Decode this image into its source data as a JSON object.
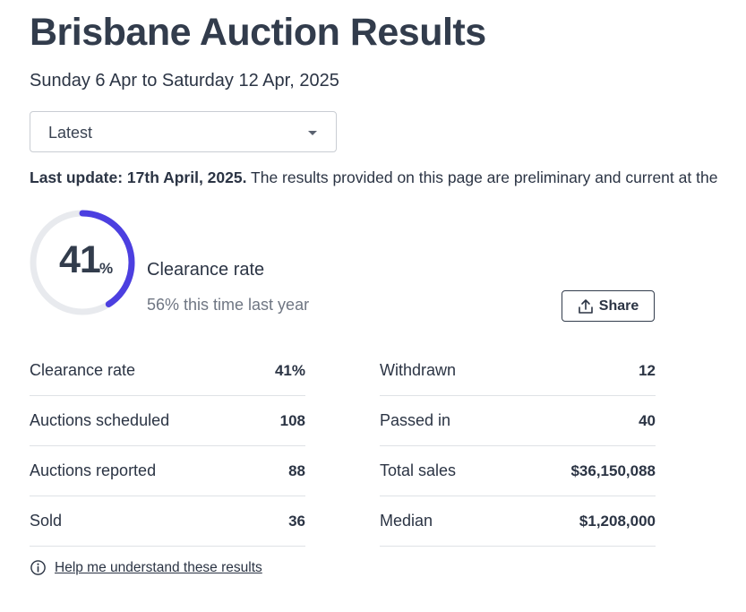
{
  "header": {
    "title": "Brisbane Auction Results",
    "date_range": "Sunday 6 Apr to Saturday 12 Apr, 2025"
  },
  "period_select": {
    "value": "Latest"
  },
  "update_notice": {
    "bold": "Last update: 17th April, 2025.",
    "text": " The results provided on this page are preliminary and current at the"
  },
  "summary": {
    "clearance_value": "41",
    "clearance_unit": "%",
    "clearance_fraction": 0.41,
    "label": "Clearance rate",
    "comparison": "56% this time last year",
    "share_label": "Share"
  },
  "stats_left": [
    {
      "label": "Clearance rate",
      "value": "41%"
    },
    {
      "label": "Auctions scheduled",
      "value": "108"
    },
    {
      "label": "Auctions reported",
      "value": "88"
    },
    {
      "label": "Sold",
      "value": "36"
    }
  ],
  "stats_right": [
    {
      "label": "Withdrawn",
      "value": "12"
    },
    {
      "label": "Passed in",
      "value": "40"
    },
    {
      "label": "Total sales",
      "value": "$36,150,088"
    },
    {
      "label": "Median",
      "value": "$1,208,000"
    }
  ],
  "help": {
    "link": "Help me understand these results"
  },
  "colors": {
    "accent": "#4c3fe0",
    "track": "#e8eaee",
    "text": "#2b3444",
    "muted": "#6f7683"
  }
}
